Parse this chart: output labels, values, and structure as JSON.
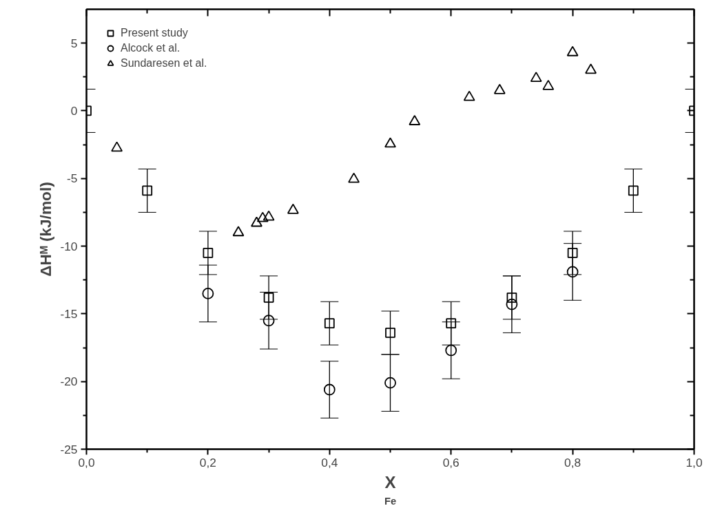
{
  "chart_data": {
    "type": "scatter",
    "xlabel": "X$_{Fe}$",
    "ylabel": "ΔHᴹ (kJ/mol)",
    "xlim": [
      0,
      1
    ],
    "ylim": [
      -25,
      7.5
    ],
    "xticks": [
      {
        "value": 0,
        "label": "0,0"
      },
      {
        "value": 0.1,
        "label": null
      },
      {
        "value": 0.2,
        "label": "0,2"
      },
      {
        "value": 0.3,
        "label": null
      },
      {
        "value": 0.4,
        "label": "0,4"
      },
      {
        "value": 0.5,
        "label": null
      },
      {
        "value": 0.6,
        "label": "0,6"
      },
      {
        "value": 0.7,
        "label": null
      },
      {
        "value": 0.8,
        "label": "0,8"
      },
      {
        "value": 0.9,
        "label": null
      },
      {
        "value": 1,
        "label": "1,0"
      }
    ],
    "yticks": [
      -25,
      {
        "value": -22.5,
        "label": null
      },
      -20,
      {
        "value": -17.5,
        "label": null
      },
      -15,
      {
        "value": -12.5,
        "label": null
      },
      -10,
      {
        "value": -7.5,
        "label": null
      },
      -5,
      {
        "value": -2.5,
        "label": null
      },
      0,
      {
        "value": 2.5,
        "label": null
      },
      5
    ],
    "grid": false,
    "legend": "top left",
    "series": [
      {
        "name": "Present study",
        "color": "#000000",
        "marker": "square",
        "x": [
          0,
          0.1,
          0.2,
          0.3,
          0.4,
          0.5,
          0.6,
          0.7,
          0.8,
          0.9,
          1
        ],
        "values": [
          0,
          -5.9,
          -10.5,
          -13.8,
          -15.7,
          -16.4,
          -15.7,
          -13.8,
          -10.5,
          -5.9,
          0
        ],
        "errors": [
          1.6,
          1.6,
          1.6,
          1.6,
          1.6,
          1.6,
          1.6,
          1.6,
          1.6,
          1.6,
          1.6
        ]
      },
      {
        "name": "Alcock et al.",
        "color": "#000000",
        "marker": "circle",
        "x": [
          0.2,
          0.3,
          0.4,
          0.5,
          0.6,
          0.7,
          0.8
        ],
        "values": [
          -13.5,
          -15.5,
          -20.6,
          -20.1,
          -17.7,
          -14.3,
          -11.9
        ],
        "errors": [
          2.1,
          2.1,
          2.1,
          2.1,
          2.1,
          2.1,
          2.1
        ]
      },
      {
        "name": "Sundaresen et al.",
        "color": "#000000",
        "marker": "triangle",
        "x": [
          0.05,
          0.25,
          0.28,
          0.29,
          0.3,
          0.34,
          0.44,
          0.5,
          0.54,
          0.63,
          0.68,
          0.74,
          0.76,
          0.8,
          0.83
        ],
        "values": [
          -2.75,
          -9.0,
          -8.3,
          -7.95,
          -7.85,
          -7.35,
          -5.05,
          -2.45,
          -0.8,
          1.0,
          1.5,
          2.4,
          1.8,
          4.3,
          3.0
        ]
      }
    ]
  }
}
